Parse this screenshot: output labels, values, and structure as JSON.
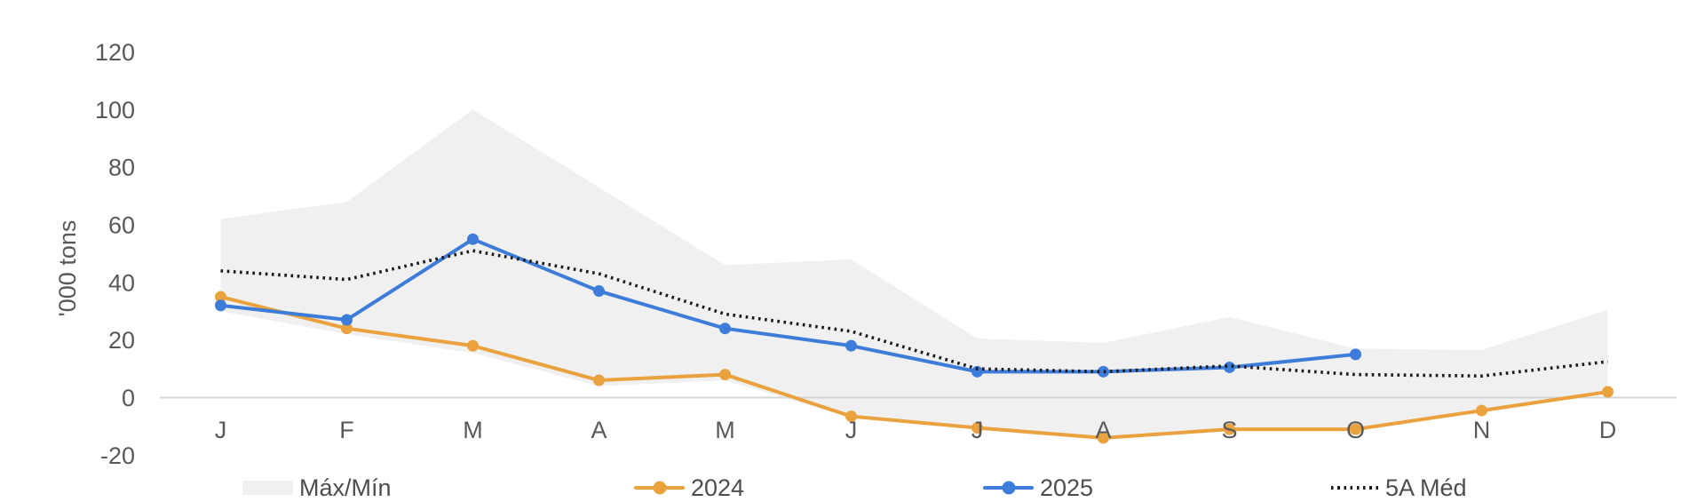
{
  "chart_data": {
    "type": "line",
    "title": "",
    "ylabel": "'000 tons",
    "xlabel": "",
    "categories": [
      "J",
      "F",
      "M",
      "A",
      "M",
      "J",
      "J",
      "A",
      "S",
      "O",
      "N",
      "D"
    ],
    "axis": {
      "yticks": [
        120,
        100,
        80,
        60,
        40,
        20,
        0,
        -20
      ],
      "ylim": [
        -20,
        120
      ],
      "grid": false,
      "zero_line": true
    },
    "series": [
      {
        "name": "Máx/Mín",
        "type": "band",
        "color": "#F0F0F0",
        "upper": [
          62,
          68,
          100,
          73,
          46,
          48,
          20.5,
          19,
          28,
          17,
          16.5,
          30.5
        ],
        "lower": [
          30,
          22,
          15.5,
          4,
          6,
          -7,
          -11,
          -13.5,
          -11,
          -11,
          -4.5,
          2
        ]
      },
      {
        "name": "2024",
        "type": "line",
        "color": "#E9A23E",
        "marker": true,
        "values": [
          35,
          24,
          18,
          6,
          8,
          -6.5,
          -10.5,
          -14,
          -11,
          -11,
          -4.5,
          2
        ]
      },
      {
        "name": "2025",
        "type": "line",
        "color": "#3D7CD9",
        "marker": true,
        "values": [
          32,
          27,
          55,
          37,
          24,
          18,
          9,
          9,
          10.5,
          15,
          null,
          null
        ]
      },
      {
        "name": "5A Méd",
        "type": "line",
        "color": "#1A1A1A",
        "dashed": true,
        "marker": false,
        "values": [
          44,
          41,
          51,
          43,
          29,
          23,
          10,
          9,
          11,
          8,
          7.5,
          12.5
        ]
      }
    ],
    "colors": {
      "band": "#F0F0F0",
      "axis_line": "#D6D6D6",
      "tick_text": "#595959",
      "legend_text": "#4d4d4d"
    }
  },
  "legend": {
    "position": "bottom",
    "items": [
      {
        "label": "Máx/Mín",
        "type": "band",
        "color": "#F0F0F0",
        "name": "legend-item-max-min"
      },
      {
        "label": "2024",
        "type": "line",
        "color": "#E9A23E",
        "name": "legend-item-2024"
      },
      {
        "label": "2025",
        "type": "line",
        "color": "#3D7CD9",
        "name": "legend-item-2025"
      },
      {
        "label": "5A Méd",
        "type": "dotted",
        "color": "#1A1A1A",
        "name": "legend-item-5a-med"
      }
    ]
  }
}
